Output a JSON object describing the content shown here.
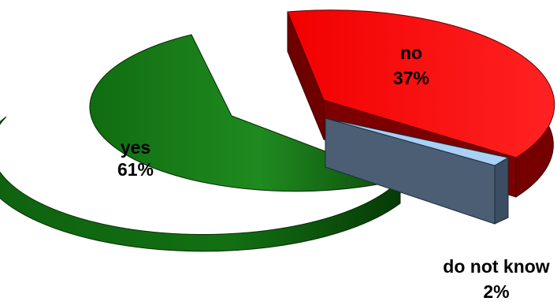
{
  "chart_data": {
    "type": "pie",
    "style": "3d-exploded",
    "title": "",
    "slices": [
      {
        "label": "yes",
        "value": 61,
        "value_label": "61%",
        "color": "#1e7e1e",
        "label_color": "#000000"
      },
      {
        "label": "no",
        "value": 37,
        "value_label": "37%",
        "color": "#ff0a0a",
        "label_color": "#000000"
      },
      {
        "label": "do not know",
        "value": 2,
        "value_label": "2%",
        "color": "#9ec9f2",
        "label_color": "#000000"
      }
    ]
  }
}
